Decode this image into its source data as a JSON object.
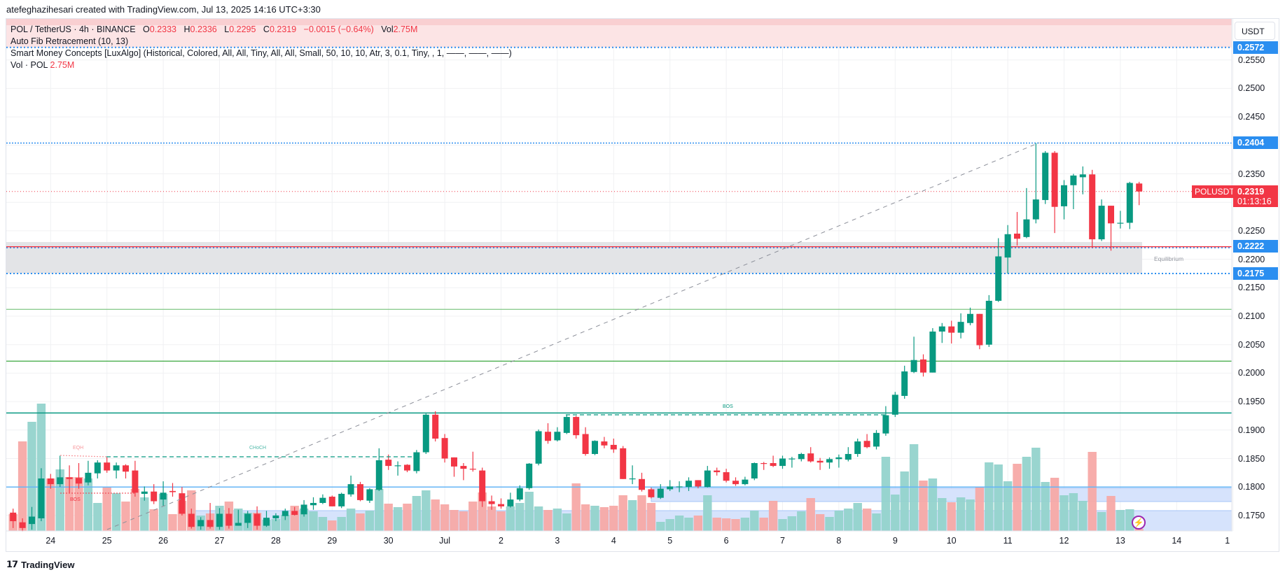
{
  "credit": "atefeghazihesari created with TradingView.com, Jul 13, 2025 14:16 UTC+3:30",
  "legend": {
    "symbol": "POL / TetherUS · 4h · BINANCE",
    "o_label": "O",
    "o": "0.2333",
    "h_label": "H",
    "h": "0.2336",
    "l_label": "L",
    "l": "0.2295",
    "c_label": "C",
    "c": "0.2319",
    "change": "−0.0015 (−0.64%)",
    "vol_label": "Vol",
    "vol": "2.75M",
    "fib": "Auto Fib Retracement (10, 13)",
    "smc": "Smart Money Concepts [LuxAlgo] (Historical, Colored, All, All, Tiny, All, All, Small, 50, 10, 10, Atr, 3, 0.1, Tiny, , 1, ——, ——, ——)",
    "vol_indicator": "Vol · POL",
    "vol_indicator_value": "2.75M"
  },
  "price_axis": {
    "currency": "USDT",
    "badges": {
      "top": "0.2572",
      "high": "0.2404",
      "mid": "0.2222",
      "low": "0.2175"
    },
    "last": {
      "symbol": "POLUSDT",
      "price": "0.2319",
      "countdown": "01:13:16"
    }
  },
  "annotations": {
    "eqh": "EQH",
    "choch": "CHoCH",
    "bos": "BOS",
    "bos_small": "BOS",
    "equilibrium": "Equilibrium"
  },
  "footer": {
    "brand": "TradingView",
    "logo": "17"
  },
  "colors": {
    "up": "#089981",
    "down": "#f23645",
    "vol_up": "#93d3cc",
    "vol_down": "#f7a9a7",
    "badge_blue": "#2b8ef0"
  },
  "chart_data": {
    "type": "candlestick",
    "title": "POL / TetherUS · 4h · BINANCE",
    "ylabel": "USDT",
    "ylim": [
      0.1725,
      0.26
    ],
    "y_ticks": [
      "0.2550",
      "0.2500",
      "0.2450",
      "0.2350",
      "0.2250",
      "0.2200",
      "0.2150",
      "0.2100",
      "0.2050",
      "0.2000",
      "0.1950",
      "0.1900",
      "0.1850",
      "0.1800",
      "0.1750"
    ],
    "x_ticks": [
      "24",
      "25",
      "26",
      "27",
      "28",
      "29",
      "30",
      "Jul",
      "2",
      "3",
      "4",
      "5",
      "6",
      "7",
      "8",
      "9",
      "10",
      "11",
      "12",
      "13",
      "14",
      "1"
    ],
    "levels": {
      "premium_top": 0.2572,
      "swing_high": 0.2404,
      "last": 0.2319,
      "equilibrium_top": 0.2222,
      "equilibrium_bottom": 0.2175,
      "fib_a": 0.2112,
      "fib_b": 0.2021,
      "bos": 0.193,
      "fib_base": 0.18
    },
    "ohlc": [
      [
        0.1755,
        0.1762,
        0.1728,
        0.174
      ],
      [
        0.1738,
        0.1745,
        0.1722,
        0.1728
      ],
      [
        0.1735,
        0.1765,
        0.1725,
        0.1748
      ],
      [
        0.1745,
        0.1833,
        0.174,
        0.1815
      ],
      [
        0.1815,
        0.1823,
        0.1797,
        0.1805
      ],
      [
        0.1805,
        0.1855,
        0.18,
        0.1817
      ],
      [
        0.1817,
        0.1838,
        0.179,
        0.1814
      ],
      [
        0.1816,
        0.1842,
        0.1797,
        0.1806
      ],
      [
        0.1808,
        0.1846,
        0.1803,
        0.1825
      ],
      [
        0.1824,
        0.1847,
        0.1815,
        0.1843
      ],
      [
        0.1843,
        0.1852,
        0.1825,
        0.1829
      ],
      [
        0.1829,
        0.1843,
        0.1815,
        0.1838
      ],
      [
        0.1838,
        0.184,
        0.1815,
        0.1827
      ],
      [
        0.1829,
        0.1846,
        0.1783,
        0.179
      ],
      [
        0.1788,
        0.1801,
        0.1776,
        0.1792
      ],
      [
        0.1792,
        0.1805,
        0.177,
        0.1775
      ],
      [
        0.1778,
        0.181,
        0.1767,
        0.179
      ],
      [
        0.1793,
        0.1807,
        0.1783,
        0.1791
      ],
      [
        0.1789,
        0.18,
        0.175,
        0.1753
      ],
      [
        0.1753,
        0.1762,
        0.1727,
        0.173
      ],
      [
        0.1731,
        0.1747,
        0.1725,
        0.1742
      ],
      [
        0.1742,
        0.1772,
        0.1727,
        0.173
      ],
      [
        0.173,
        0.1763,
        0.1725,
        0.1753
      ],
      [
        0.1753,
        0.1763,
        0.1727,
        0.1732
      ],
      [
        0.1732,
        0.176,
        0.1732,
        0.1737
      ],
      [
        0.1737,
        0.1758,
        0.1728,
        0.1753
      ],
      [
        0.1753,
        0.1766,
        0.1725,
        0.1732
      ],
      [
        0.1732,
        0.1758,
        0.173,
        0.1746
      ],
      [
        0.1745,
        0.1754,
        0.174,
        0.175
      ],
      [
        0.1749,
        0.1762,
        0.1742,
        0.1758
      ],
      [
        0.1758,
        0.1765,
        0.175,
        0.1751
      ],
      [
        0.1752,
        0.1777,
        0.1748,
        0.1769
      ],
      [
        0.1768,
        0.1782,
        0.176,
        0.1772
      ],
      [
        0.1772,
        0.1787,
        0.177,
        0.1781
      ],
      [
        0.1783,
        0.1785,
        0.1766,
        0.1766
      ],
      [
        0.1766,
        0.179,
        0.1763,
        0.1788
      ],
      [
        0.1787,
        0.182,
        0.1783,
        0.1805
      ],
      [
        0.1805,
        0.1809,
        0.1775,
        0.1777
      ],
      [
        0.1776,
        0.1798,
        0.1772,
        0.1796
      ],
      [
        0.1795,
        0.1868,
        0.1793,
        0.1847
      ],
      [
        0.1848,
        0.1857,
        0.183,
        0.1837
      ],
      [
        0.1837,
        0.1845,
        0.182,
        0.1838
      ],
      [
        0.1839,
        0.184,
        0.1826,
        0.1829
      ],
      [
        0.1828,
        0.1865,
        0.1824,
        0.1861
      ],
      [
        0.1861,
        0.1929,
        0.1858,
        0.1927
      ],
      [
        0.1927,
        0.1933,
        0.188,
        0.1885
      ],
      [
        0.1886,
        0.1893,
        0.1843,
        0.185
      ],
      [
        0.1852,
        0.1852,
        0.1818,
        0.1836
      ],
      [
        0.1837,
        0.1842,
        0.1812,
        0.1832
      ],
      [
        0.1832,
        0.1862,
        0.1827,
        0.1831
      ],
      [
        0.1829,
        0.1834,
        0.1765,
        0.1775
      ],
      [
        0.1775,
        0.1785,
        0.176,
        0.177
      ],
      [
        0.177,
        0.178,
        0.1762,
        0.1766
      ],
      [
        0.1766,
        0.179,
        0.1764,
        0.1778
      ],
      [
        0.1778,
        0.1803,
        0.1775,
        0.1798
      ],
      [
        0.1798,
        0.1842,
        0.1795,
        0.1841
      ],
      [
        0.1841,
        0.1901,
        0.1838,
        0.1898
      ],
      [
        0.1897,
        0.1912,
        0.1876,
        0.1881
      ],
      [
        0.1882,
        0.1905,
        0.188,
        0.1897
      ],
      [
        0.1895,
        0.1927,
        0.1893,
        0.1923
      ],
      [
        0.1923,
        0.1925,
        0.1885,
        0.1891
      ],
      [
        0.1893,
        0.1905,
        0.1855,
        0.1858
      ],
      [
        0.1858,
        0.1882,
        0.1856,
        0.1881
      ],
      [
        0.188,
        0.1888,
        0.1868,
        0.1873
      ],
      [
        0.1874,
        0.1885,
        0.186,
        0.1866
      ],
      [
        0.1868,
        0.1872,
        0.1814,
        0.1814
      ],
      [
        0.1815,
        0.1838,
        0.1805,
        0.1815
      ],
      [
        0.1814,
        0.1825,
        0.1792,
        0.1795
      ],
      [
        0.1796,
        0.1799,
        0.178,
        0.1782
      ],
      [
        0.1781,
        0.1805,
        0.1779,
        0.1797
      ],
      [
        0.1796,
        0.1812,
        0.1793,
        0.1801
      ],
      [
        0.18,
        0.181,
        0.1791,
        0.1801
      ],
      [
        0.18,
        0.1817,
        0.1793,
        0.1811
      ],
      [
        0.1812,
        0.1812,
        0.1798,
        0.1801
      ],
      [
        0.18,
        0.1837,
        0.1799,
        0.1829
      ],
      [
        0.1829,
        0.1834,
        0.182,
        0.1826
      ],
      [
        0.1826,
        0.1832,
        0.1808,
        0.1811
      ],
      [
        0.1811,
        0.1817,
        0.1802,
        0.1805
      ],
      [
        0.1805,
        0.1818,
        0.1803,
        0.1813
      ],
      [
        0.1815,
        0.1843,
        0.1812,
        0.1842
      ],
      [
        0.1842,
        0.1844,
        0.183,
        0.1841
      ],
      [
        0.1842,
        0.1855,
        0.1835,
        0.1837
      ],
      [
        0.1837,
        0.1855,
        0.1832,
        0.185
      ],
      [
        0.1849,
        0.1853,
        0.1834,
        0.185
      ],
      [
        0.1849,
        0.186,
        0.1845,
        0.1858
      ],
      [
        0.1859,
        0.187,
        0.1843,
        0.1845
      ],
      [
        0.1846,
        0.1851,
        0.183,
        0.1843
      ],
      [
        0.1843,
        0.1852,
        0.1832,
        0.1849
      ],
      [
        0.1849,
        0.1857,
        0.1834,
        0.1852
      ],
      [
        0.1848,
        0.187,
        0.1845,
        0.1858
      ],
      [
        0.1858,
        0.1885,
        0.1853,
        0.188
      ],
      [
        0.1881,
        0.1893,
        0.1868,
        0.187
      ],
      [
        0.1871,
        0.19,
        0.1866,
        0.1895
      ],
      [
        0.1894,
        0.1942,
        0.189,
        0.1926
      ],
      [
        0.1927,
        0.1967,
        0.1923,
        0.1962
      ],
      [
        0.196,
        0.2013,
        0.1955,
        0.2003
      ],
      [
        0.2002,
        0.2064,
        0.2,
        0.2023
      ],
      [
        0.2024,
        0.2033,
        0.1994,
        0.2001
      ],
      [
        0.2001,
        0.2079,
        0.2001,
        0.2073
      ],
      [
        0.2073,
        0.2088,
        0.2053,
        0.2082
      ],
      [
        0.2082,
        0.2092,
        0.2052,
        0.2071
      ],
      [
        0.2071,
        0.2105,
        0.2061,
        0.209
      ],
      [
        0.2088,
        0.2115,
        0.2084,
        0.2104
      ],
      [
        0.2104,
        0.2104,
        0.2042,
        0.2049
      ],
      [
        0.205,
        0.2137,
        0.2046,
        0.2127
      ],
      [
        0.2127,
        0.2237,
        0.2125,
        0.2205
      ],
      [
        0.2203,
        0.226,
        0.2175,
        0.2244
      ],
      [
        0.2245,
        0.2283,
        0.2224,
        0.2236
      ],
      [
        0.2239,
        0.2325,
        0.2237,
        0.227
      ],
      [
        0.227,
        0.2404,
        0.2263,
        0.2305
      ],
      [
        0.2304,
        0.239,
        0.2297,
        0.2387
      ],
      [
        0.2387,
        0.239,
        0.2246,
        0.2292
      ],
      [
        0.2293,
        0.2339,
        0.227,
        0.233
      ],
      [
        0.233,
        0.235,
        0.2288,
        0.2347
      ],
      [
        0.2344,
        0.2363,
        0.2314,
        0.2349
      ],
      [
        0.2349,
        0.2357,
        0.222,
        0.2235
      ],
      [
        0.2235,
        0.2305,
        0.2232,
        0.2294
      ],
      [
        0.2294,
        0.2294,
        0.2215,
        0.2263
      ],
      [
        0.2263,
        0.2285,
        0.2254,
        0.2264
      ],
      [
        0.2264,
        0.2336,
        0.2253,
        0.2334
      ],
      [
        0.2333,
        0.2336,
        0.2295,
        0.2319
      ]
    ],
    "volume_M": [
      24,
      128,
      156,
      182,
      75,
      88,
      77,
      77,
      75,
      40,
      63,
      54,
      42,
      60,
      48,
      31,
      53,
      24,
      43,
      58,
      22,
      25,
      36,
      42,
      32,
      26,
      26,
      16,
      17,
      23,
      36,
      32,
      28,
      20,
      15,
      20,
      32,
      25,
      29,
      60,
      39,
      34,
      39,
      50,
      58,
      45,
      38,
      30,
      28,
      42,
      55,
      35,
      28,
      35,
      40,
      56,
      35,
      30,
      32,
      25,
      68,
      38,
      36,
      34,
      36,
      51,
      44,
      51,
      40,
      13,
      17,
      22,
      19,
      22,
      51,
      19,
      18,
      17,
      19,
      29,
      19,
      43,
      17,
      21,
      28,
      47,
      24,
      20,
      29,
      32,
      40,
      32,
      25,
      106,
      52,
      85,
      124,
      72,
      75,
      47,
      41,
      48,
      45,
      63,
      98,
      95,
      71,
      96,
      106,
      119,
      70,
      76,
      51,
      54,
      43,
      113,
      27,
      50,
      30,
      31,
      2.75
    ]
  }
}
